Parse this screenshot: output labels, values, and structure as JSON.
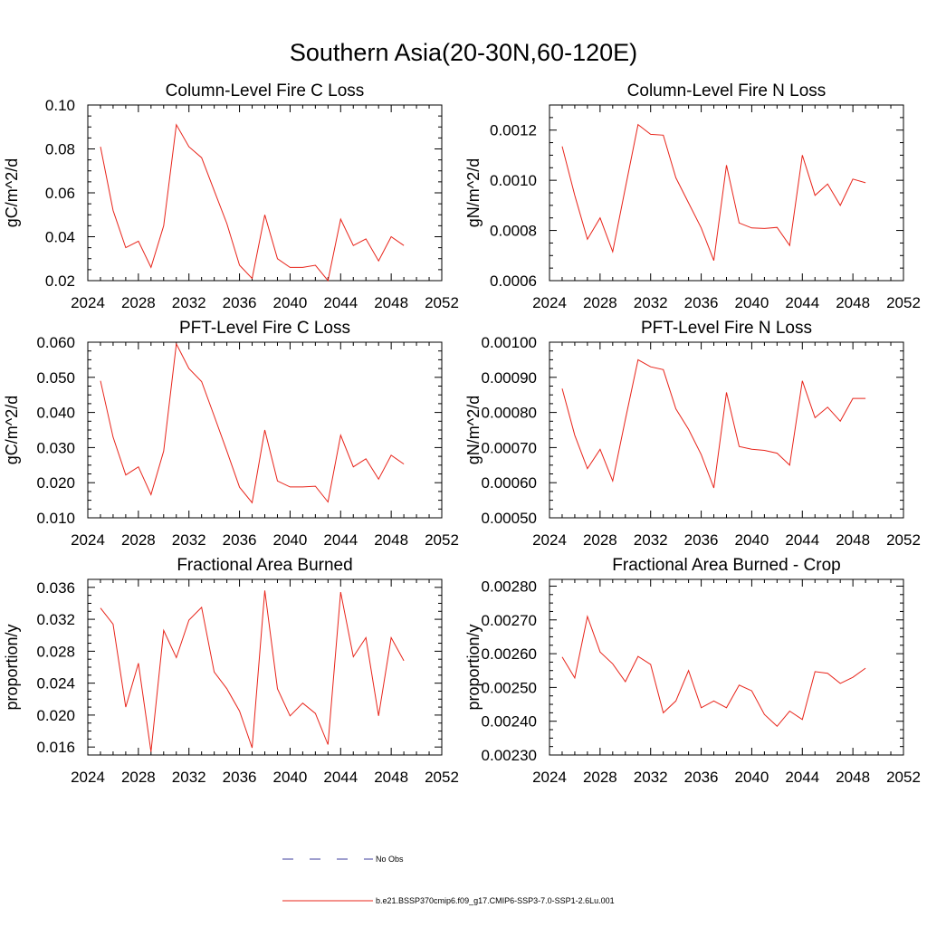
{
  "figure": {
    "title": "Southern Asia(20-30N,60-120E)"
  },
  "legend": {
    "entries": [
      {
        "label": "No Obs",
        "color": "#3d3d9e",
        "style": "dashed"
      },
      {
        "label": "b.e21.BSSP370cmip6.f09_g17.CMIP6-SSP3-7.0-SSP1-2.6Lu.001",
        "color": "#e8241a",
        "style": "solid"
      }
    ]
  },
  "chart_data": [
    {
      "type": "line",
      "title": "Column-Level Fire C Loss",
      "ylabel": "gC/m^2/d",
      "xlim": [
        2024,
        2052
      ],
      "ylim": [
        0.02,
        0.1
      ],
      "xticks": [
        2024,
        2028,
        2032,
        2036,
        2040,
        2044,
        2048,
        2052
      ],
      "yticks": [
        0.02,
        0.04,
        0.06,
        0.08,
        0.1
      ],
      "ytick_labels": [
        "0.02",
        "0.04",
        "0.06",
        "0.08",
        "0.10"
      ],
      "x": [
        2025,
        2026,
        2027,
        2028,
        2029,
        2030,
        2031,
        2032,
        2033,
        2034,
        2035,
        2036,
        2037,
        2038,
        2039,
        2040,
        2041,
        2042,
        2043,
        2044,
        2045,
        2046,
        2047,
        2048,
        2049
      ],
      "series": [
        {
          "name": "b.e21.BSSP370cmip6.f09_g17.CMIP6-SSP3-7.0-SSP1-2.6Lu.001",
          "color": "#e8241a",
          "values": [
            0.081,
            0.052,
            0.035,
            0.038,
            0.026,
            0.045,
            0.091,
            0.081,
            0.076,
            0.061,
            0.046,
            0.027,
            0.021,
            0.05,
            0.03,
            0.026,
            0.026,
            0.027,
            0.02,
            0.048,
            0.036,
            0.039,
            0.029,
            0.04,
            0.036
          ]
        }
      ]
    },
    {
      "type": "line",
      "title": "Column-Level Fire N Loss",
      "ylabel": "gN/m^2/d",
      "xlim": [
        2024,
        2052
      ],
      "ylim": [
        0.0006,
        0.0013
      ],
      "xticks": [
        2024,
        2028,
        2032,
        2036,
        2040,
        2044,
        2048,
        2052
      ],
      "yticks": [
        0.0006,
        0.0008,
        0.001,
        0.0012
      ],
      "ytick_labels": [
        "0.0006",
        "0.0008",
        "0.0010",
        "0.0012"
      ],
      "x": [
        2025,
        2026,
        2027,
        2028,
        2029,
        2030,
        2031,
        2032,
        2033,
        2034,
        2035,
        2036,
        2037,
        2038,
        2039,
        2040,
        2041,
        2042,
        2043,
        2044,
        2045,
        2046,
        2047,
        2048,
        2049
      ],
      "series": [
        {
          "name": "b.e21.BSSP370cmip6.f09_g17.CMIP6-SSP3-7.0-SSP1-2.6Lu.001",
          "color": "#e8241a",
          "values": [
            0.001135,
            0.00094,
            0.000765,
            0.00085,
            0.000715,
            0.00097,
            0.001222,
            0.001183,
            0.00118,
            0.00101,
            0.00091,
            0.00081,
            0.00068,
            0.00106,
            0.00083,
            0.00081,
            0.000808,
            0.000812,
            0.00074,
            0.0011,
            0.00094,
            0.000985,
            0.0009,
            0.001005,
            0.00099
          ]
        }
      ]
    },
    {
      "type": "line",
      "title": "PFT-Level Fire C Loss",
      "ylabel": "gC/m^2/d",
      "xlim": [
        2024,
        2052
      ],
      "ylim": [
        0.01,
        0.06
      ],
      "xticks": [
        2024,
        2028,
        2032,
        2036,
        2040,
        2044,
        2048,
        2052
      ],
      "yticks": [
        0.01,
        0.02,
        0.03,
        0.04,
        0.05,
        0.06
      ],
      "ytick_labels": [
        "0.010",
        "0.020",
        "0.030",
        "0.040",
        "0.050",
        "0.060"
      ],
      "x": [
        2025,
        2026,
        2027,
        2028,
        2029,
        2030,
        2031,
        2032,
        2033,
        2034,
        2035,
        2036,
        2037,
        2038,
        2039,
        2040,
        2041,
        2042,
        2043,
        2044,
        2045,
        2046,
        2047,
        2048,
        2049
      ],
      "series": [
        {
          "name": "b.e21.BSSP370cmip6.f09_g17.CMIP6-SSP3-7.0-SSP1-2.6Lu.001",
          "color": "#e8241a",
          "values": [
            0.049,
            0.033,
            0.0222,
            0.0245,
            0.0166,
            0.029,
            0.0595,
            0.0525,
            0.0488,
            0.039,
            0.029,
            0.0187,
            0.0143,
            0.035,
            0.0205,
            0.0188,
            0.0188,
            0.019,
            0.0145,
            0.0335,
            0.0245,
            0.0268,
            0.021,
            0.0278,
            0.0253
          ]
        }
      ]
    },
    {
      "type": "line",
      "title": "PFT-Level Fire N Loss",
      "ylabel": "gN/m^2/d",
      "xlim": [
        2024,
        2052
      ],
      "ylim": [
        0.0005,
        0.001
      ],
      "xticks": [
        2024,
        2028,
        2032,
        2036,
        2040,
        2044,
        2048,
        2052
      ],
      "yticks": [
        0.0005,
        0.0006,
        0.0007,
        0.0008,
        0.0009,
        0.001
      ],
      "ytick_labels": [
        "0.00050",
        "0.00060",
        "0.00070",
        "0.00080",
        "0.00090",
        "0.00100"
      ],
      "x": [
        2025,
        2026,
        2027,
        2028,
        2029,
        2030,
        2031,
        2032,
        2033,
        2034,
        2035,
        2036,
        2037,
        2038,
        2039,
        2040,
        2041,
        2042,
        2043,
        2044,
        2045,
        2046,
        2047,
        2048,
        2049
      ],
      "series": [
        {
          "name": "b.e21.BSSP370cmip6.f09_g17.CMIP6-SSP3-7.0-SSP1-2.6Lu.001",
          "color": "#e8241a",
          "values": [
            0.000868,
            0.000735,
            0.00064,
            0.000695,
            0.000605,
            0.00078,
            0.00095,
            0.00093,
            0.000922,
            0.00081,
            0.000752,
            0.00068,
            0.000585,
            0.000857,
            0.000703,
            0.000695,
            0.000692,
            0.000684,
            0.00065,
            0.00089,
            0.000785,
            0.000815,
            0.000775,
            0.00084,
            0.00084
          ]
        }
      ]
    },
    {
      "type": "line",
      "title": "Fractional Area Burned",
      "ylabel": "proportion/y",
      "xlim": [
        2024,
        2052
      ],
      "ylim": [
        0.015,
        0.037
      ],
      "xticks": [
        2024,
        2028,
        2032,
        2036,
        2040,
        2044,
        2048,
        2052
      ],
      "yticks": [
        0.016,
        0.02,
        0.024,
        0.028,
        0.032,
        0.036
      ],
      "ytick_labels": [
        "0.016",
        "0.020",
        "0.024",
        "0.028",
        "0.032",
        "0.036"
      ],
      "x": [
        2025,
        2026,
        2027,
        2028,
        2029,
        2030,
        2031,
        2032,
        2033,
        2034,
        2035,
        2036,
        2037,
        2038,
        2039,
        2040,
        2041,
        2042,
        2043,
        2044,
        2045,
        2046,
        2047,
        2048,
        2049
      ],
      "series": [
        {
          "name": "b.e21.BSSP370cmip6.f09_g17.CMIP6-SSP3-7.0-SSP1-2.6Lu.001",
          "color": "#e8241a",
          "values": [
            0.0334,
            0.0314,
            0.021,
            0.0265,
            0.0154,
            0.0306,
            0.0272,
            0.0319,
            0.0335,
            0.0254,
            0.0233,
            0.0205,
            0.0159,
            0.0356,
            0.0233,
            0.0199,
            0.0215,
            0.0202,
            0.0163,
            0.0354,
            0.0273,
            0.0297,
            0.0199,
            0.0297,
            0.0268
          ]
        }
      ]
    },
    {
      "type": "line",
      "title": "Fractional Area Burned - Crop",
      "ylabel": "proportion/y",
      "xlim": [
        2024,
        2052
      ],
      "ylim": [
        0.0023,
        0.00282
      ],
      "xticks": [
        2024,
        2028,
        2032,
        2036,
        2040,
        2044,
        2048,
        2052
      ],
      "yticks": [
        0.0023,
        0.0024,
        0.0025,
        0.0026,
        0.0027,
        0.0028
      ],
      "ytick_labels": [
        "0.00230",
        "0.00240",
        "0.00250",
        "0.00260",
        "0.00270",
        "0.00280"
      ],
      "x": [
        2025,
        2026,
        2027,
        2028,
        2029,
        2030,
        2031,
        2032,
        2033,
        2034,
        2035,
        2036,
        2037,
        2038,
        2039,
        2040,
        2041,
        2042,
        2043,
        2044,
        2045,
        2046,
        2047,
        2048,
        2049
      ],
      "series": [
        {
          "name": "b.e21.BSSP370cmip6.f09_g17.CMIP6-SSP3-7.0-SSP1-2.6Lu.001",
          "color": "#e8241a",
          "values": [
            0.00259,
            0.002528,
            0.00271,
            0.002605,
            0.00257,
            0.002517,
            0.002592,
            0.002568,
            0.002425,
            0.00246,
            0.00255,
            0.00244,
            0.00246,
            0.00244,
            0.002507,
            0.00249,
            0.00242,
            0.002385,
            0.00243,
            0.002405,
            0.002547,
            0.002542,
            0.002512,
            0.00253,
            0.002557
          ]
        }
      ]
    }
  ]
}
